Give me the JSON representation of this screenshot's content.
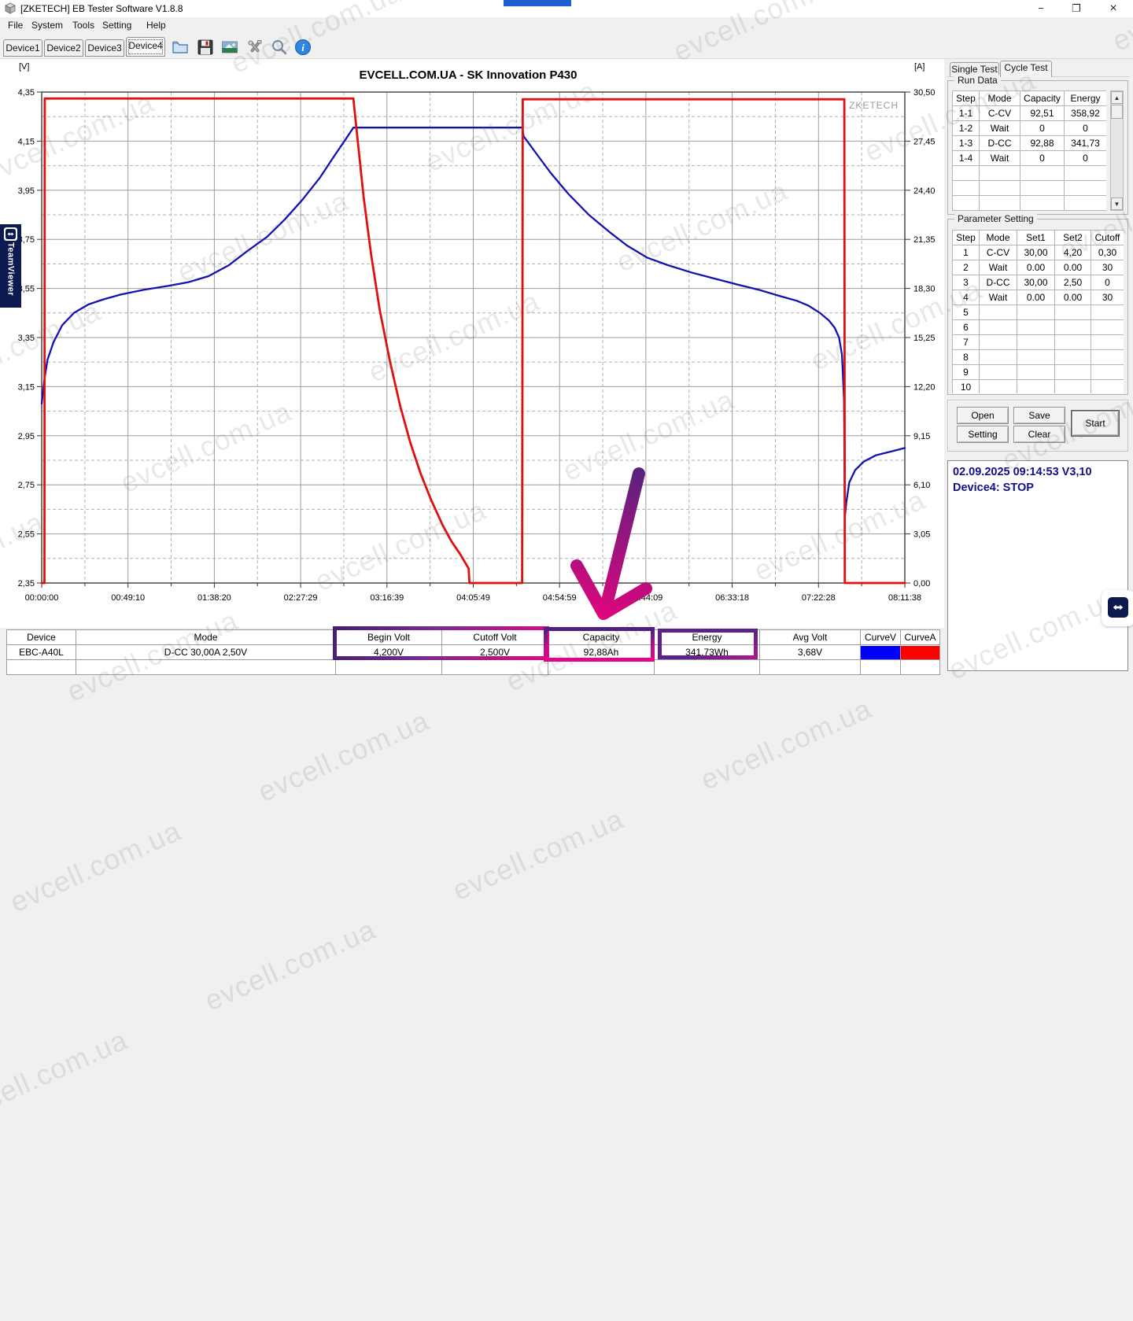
{
  "window": {
    "title": "[ZKETECH] EB Tester Software V1.8.8",
    "controls": {
      "minimize": "−",
      "restore": "❐",
      "close": "×"
    }
  },
  "menu": {
    "items": [
      "File",
      "System",
      "Tools",
      "Setting",
      "Help"
    ]
  },
  "toolbar": {
    "device_tabs": [
      "Device1",
      "Device2",
      "Device3",
      "Device4"
    ],
    "active_tab": "Device4"
  },
  "chart_data": {
    "type": "line",
    "title": "EVCELL.COM.UA - SK Innovation P430",
    "plot_watermark": "ZKETECH",
    "left_axis": {
      "label": "[V]",
      "min": 2.35,
      "max": 4.35,
      "ticks": [
        "4,35",
        "4,15",
        "3,95",
        "3,75",
        "3,55",
        "3,35",
        "3,15",
        "2,95",
        "2,75",
        "2,55",
        "2,35"
      ]
    },
    "right_axis": {
      "label": "[A]",
      "min": 0,
      "max": 30.5,
      "ticks": [
        "30,50",
        "27,45",
        "24,40",
        "21,35",
        "18,30",
        "15,25",
        "12,20",
        "9,15",
        "6,10",
        "3,05",
        "0,00"
      ]
    },
    "x_axis": {
      "min": 0,
      "max": 29498,
      "ticks": [
        "00:00:00",
        "00:49:10",
        "01:38:20",
        "02:27:29",
        "03:16:39",
        "04:05:49",
        "04:54:59",
        "05:44:09",
        "06:33:18",
        "07:22:28",
        "08:11:38"
      ]
    },
    "series": [
      {
        "name": "Voltage",
        "axis": "left",
        "color": "#1212b2",
        "points": [
          [
            0,
            3.08
          ],
          [
            80,
            3.17
          ],
          [
            200,
            3.26
          ],
          [
            400,
            3.33
          ],
          [
            700,
            3.4
          ],
          [
            1100,
            3.45
          ],
          [
            1600,
            3.485
          ],
          [
            2100,
            3.505
          ],
          [
            2700,
            3.525
          ],
          [
            3500,
            3.545
          ],
          [
            4300,
            3.56
          ],
          [
            5000,
            3.575
          ],
          [
            5700,
            3.6
          ],
          [
            6400,
            3.645
          ],
          [
            7000,
            3.7
          ],
          [
            7700,
            3.76
          ],
          [
            8300,
            3.83
          ],
          [
            8900,
            3.91
          ],
          [
            9500,
            4.0
          ],
          [
            10000,
            4.09
          ],
          [
            10400,
            4.16
          ],
          [
            10650,
            4.205
          ],
          [
            14600,
            4.205
          ],
          [
            16430,
            4.205
          ],
          [
            16470,
            4.17
          ],
          [
            16900,
            4.1
          ],
          [
            17400,
            4.02
          ],
          [
            18000,
            3.935
          ],
          [
            18700,
            3.85
          ],
          [
            19400,
            3.78
          ],
          [
            20000,
            3.725
          ],
          [
            20700,
            3.675
          ],
          [
            21400,
            3.645
          ],
          [
            22200,
            3.615
          ],
          [
            23000,
            3.59
          ],
          [
            23800,
            3.565
          ],
          [
            24500,
            3.545
          ],
          [
            25200,
            3.52
          ],
          [
            25800,
            3.5
          ],
          [
            26200,
            3.48
          ],
          [
            26600,
            3.45
          ],
          [
            26900,
            3.42
          ],
          [
            27100,
            3.39
          ],
          [
            27250,
            3.35
          ],
          [
            27350,
            3.28
          ],
          [
            27420,
            3.1
          ],
          [
            27450,
            2.62
          ],
          [
            27500,
            2.68
          ],
          [
            27600,
            2.76
          ],
          [
            27800,
            2.81
          ],
          [
            28100,
            2.845
          ],
          [
            28500,
            2.87
          ],
          [
            29000,
            2.885
          ],
          [
            29498,
            2.9
          ]
        ]
      },
      {
        "name": "Current",
        "axis": "right",
        "color": "#e01010",
        "points": [
          [
            0,
            0
          ],
          [
            95,
            0
          ],
          [
            105,
            30.1
          ],
          [
            10650,
            30.1
          ],
          [
            10800,
            27.5
          ],
          [
            11000,
            24
          ],
          [
            11250,
            20.5
          ],
          [
            11550,
            17
          ],
          [
            11900,
            13.8
          ],
          [
            12250,
            11
          ],
          [
            12600,
            8.7
          ],
          [
            12950,
            6.8
          ],
          [
            13300,
            5.2
          ],
          [
            13700,
            3.6
          ],
          [
            14000,
            2.6
          ],
          [
            14300,
            1.8
          ],
          [
            14590,
            0.9
          ],
          [
            14620,
            0
          ],
          [
            16420,
            0
          ],
          [
            16440,
            30.05
          ],
          [
            27430,
            30.05
          ],
          [
            27445,
            0
          ],
          [
            29498,
            0
          ]
        ]
      }
    ]
  },
  "right_panel": {
    "tabs": [
      "Single Test",
      "Cycle Test"
    ],
    "active_tab": "Cycle Test",
    "run_data": {
      "title": "Run Data",
      "headers": [
        "Step",
        "Mode",
        "Capacity",
        "Energy"
      ],
      "rows": [
        [
          "1-1",
          "C-CV",
          "92,51",
          "358,92"
        ],
        [
          "1-2",
          "Wait",
          "0",
          "0"
        ],
        [
          "1-3",
          "D-CC",
          "92,88",
          "341,73"
        ],
        [
          "1-4",
          "Wait",
          "0",
          "0"
        ],
        [
          "",
          "",
          "",
          ""
        ],
        [
          "",
          "",
          "",
          ""
        ],
        [
          "",
          "",
          "",
          ""
        ],
        [
          "",
          "",
          "",
          ""
        ]
      ]
    },
    "parameter_setting": {
      "title": "Parameter Setting",
      "headers": [
        "Step",
        "Mode",
        "Set1",
        "Set2",
        "Cutoff"
      ],
      "rows": [
        [
          "1",
          "C-CV",
          "30,00",
          "4,20",
          "0,30"
        ],
        [
          "2",
          "Wait",
          "0.00",
          "0.00",
          "30"
        ],
        [
          "3",
          "D-CC",
          "30,00",
          "2,50",
          "0"
        ],
        [
          "4",
          "Wait",
          "0.00",
          "0.00",
          "30"
        ],
        [
          "5",
          "",
          "",
          "",
          ""
        ],
        [
          "6",
          "",
          "",
          "",
          ""
        ],
        [
          "7",
          "",
          "",
          "",
          ""
        ],
        [
          "8",
          "",
          "",
          "",
          ""
        ],
        [
          "9",
          "",
          "",
          "",
          ""
        ],
        [
          "10",
          "",
          "",
          "",
          ""
        ]
      ]
    },
    "buttons": {
      "open": "Open",
      "save": "Save",
      "setting": "Setting",
      "clear": "Clear",
      "start": "Start"
    },
    "status": {
      "line1": "02.09.2025 09:14:53  V3,10",
      "line2": "Device4: STOP"
    }
  },
  "bottom_bar": {
    "headers": [
      "Device",
      "Mode",
      "Begin Volt",
      "Cutoff Volt",
      "Capacity",
      "Energy",
      "Avg Volt",
      "CurveV",
      "CurveA"
    ],
    "values": [
      "EBC-A40L",
      "D-CC 30,00A 2,50V",
      "4,200V",
      "2,500V",
      "92,88Ah",
      "341,73Wh",
      "3,68V"
    ],
    "curve_v_color": "#0000ff",
    "curve_a_color": "#ff0000"
  },
  "watermark": {
    "text": "evcell.com.ua"
  },
  "teamviewer": {
    "label": "TeamViewer"
  }
}
